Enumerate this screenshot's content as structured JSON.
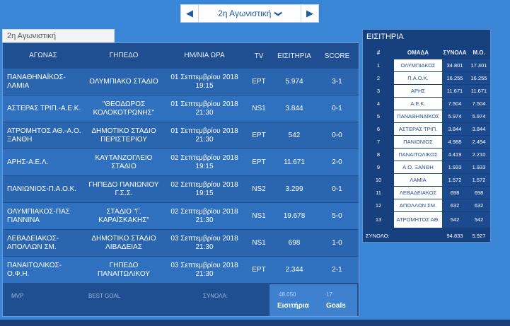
{
  "round_nav": {
    "prev_icon": "◀",
    "label": "2η Αγωνιστική",
    "chevron": "❯",
    "next_icon": "▶"
  },
  "tab_label": "2η Αγωνιστική",
  "matches": {
    "headers": {
      "match": "ΑΓΩΝΑΣ",
      "venue": "ΓΗΠΕΔΟ",
      "date": "ΗΜ/ΝΙΑ ΩΡΑ",
      "tv": "TV",
      "attendance": "ΕΙΣΙΤΗΡΙΑ",
      "score": "SCORE"
    },
    "rows": [
      {
        "match": "ΠΑΝΑΘΗΝΑΪΚΟΣ-ΛΑΜΙΑ",
        "venue": "ΟΛΥΜΠΙΑΚΟ ΣΤΑΔΙΟ",
        "date": "01 Σεπτεμβρίου 2018 19:15",
        "tv": "ΕΡΤ",
        "attendance": "5.974",
        "score": "3-1"
      },
      {
        "match": "ΑΣΤΕΡΑΣ ΤΡΙΠ.-Α.Ε.Κ.",
        "venue": "\"ΘΕΟΔΩΡΟΣ ΚΟΛΟΚΟΤΡΩΝΗΣ\"",
        "date": "01 Σεπτεμβρίου 2018 21:30",
        "tv": "NS1",
        "attendance": "3.844",
        "score": "0-1"
      },
      {
        "match": "ΑΤΡΟΜΗΤΟΣ ΑΘ.-Α.Ο. ΞΑΝΘΗ",
        "venue": "ΔΗΜΟΤΙΚΟ ΣΤΑΔΙΟ ΠΕΡΙΣΤΕΡΙΟΥ",
        "date": "01 Σεπτεμβρίου 2018 21:30",
        "tv": "ΕΡΤ",
        "attendance": "542",
        "score": "0-0"
      },
      {
        "match": "ΑΡΗΣ-Α.Ε.Λ.",
        "venue": "ΚΑΥΤΑΝΖΟΓΛΕΙΟ ΣΤΑΔΙΟ",
        "date": "02 Σεπτεμβρίου 2018 19:15",
        "tv": "ΕΡΤ",
        "attendance": "11.671",
        "score": "2-0"
      },
      {
        "match": "ΠΑΝΙΩΝΙΟΣ-Π.Α.Ο.Κ.",
        "venue": "ΓΗΠΕΔΟ ΠΑΝΙΩΝΙΟΥ Γ.Σ.Σ.",
        "date": "02 Σεπτεμβρίου 2018 19:15",
        "tv": "NS2",
        "attendance": "3.299",
        "score": "0-1"
      },
      {
        "match": "ΟΛΥΜΠΙΑΚΟΣ-ΠΑΣ ΓΙΑΝΝΙΝΑ",
        "venue": "ΣΤΑΔΙΟ \"Γ. ΚΑΡΑΪΣΚΑΚΗΣ\"",
        "date": "02 Σεπτεμβρίου 2018 21:30",
        "tv": "NS1",
        "attendance": "19.678",
        "score": "5-0"
      },
      {
        "match": "ΛΕΒΑΔΕΙΑΚΟΣ-ΑΠΟΛΛΩΝ ΣΜ.",
        "venue": "ΔΗΜΟΤΙΚΟ ΣΤΑΔΙΟ ΛΙΒΑΔΕΙΑΣ",
        "date": "03 Σεπτεμβρίου 2018 21:30",
        "tv": "NS1",
        "attendance": "698",
        "score": "1-0"
      },
      {
        "match": "ΠΑΝΑΙΤΩΛΙΚΟΣ-Ο.Φ.Η.",
        "venue": "ΓΗΠΕΔΟ ΠΑΝΑΙΤΩΛΙΚΟΥ",
        "date": "03 Σεπτεμβρίου 2018 21:30",
        "tv": "ΕΡΤ",
        "attendance": "2.344",
        "score": "2-1"
      }
    ],
    "footer": {
      "mvp": "MVP",
      "best_goal": "BEST GOAL",
      "totals_label": "ΣΥΝΟΛΑ:",
      "tickets_total": "48.050",
      "tickets_label": "Εισιτήρια",
      "goals_total": "17",
      "goals_label": "Goals"
    }
  },
  "tickets": {
    "title": "ΕΙΣΙΤΗΡΙΑ",
    "headers": {
      "no": "#",
      "team": "ΟΜΑΔΑ",
      "total": "ΣΥΝΟΛΑ",
      "avg": "Μ.Ο."
    },
    "rows": [
      {
        "no": "1",
        "team": "ΟΛΥΜΠΙΑΚΟΣ",
        "total": "34.801",
        "avg": "17.401"
      },
      {
        "no": "2",
        "team": "Π.Α.Ο.Κ.",
        "total": "16.255",
        "avg": "16.255"
      },
      {
        "no": "3",
        "team": "ΑΡΗΣ",
        "total": "11.671",
        "avg": "11.671"
      },
      {
        "no": "4",
        "team": "Α.Ε.Κ.",
        "total": "7.504",
        "avg": "7.504"
      },
      {
        "no": "5",
        "team": "ΠΑΝΑΘΗΝΑΪΚΟΣ",
        "total": "5.974",
        "avg": "5.974"
      },
      {
        "no": "6",
        "team": "ΑΣΤΕΡΑΣ ΤΡΙΠ.",
        "total": "3.844",
        "avg": "3.844"
      },
      {
        "no": "7",
        "team": "ΠΑΝΙΩΝΙΟΣ",
        "total": "4.988",
        "avg": "2.494"
      },
      {
        "no": "8",
        "team": "ΠΑΝΑΙΤΩΛΙΚΟΣ",
        "total": "4.419",
        "avg": "2.210"
      },
      {
        "no": "9",
        "team": "Α.Ο. ΞΑΝΘΗ",
        "total": "1.933",
        "avg": "1.933"
      },
      {
        "no": "10",
        "team": "ΛΑΜΙΑ",
        "total": "1.572",
        "avg": "1.572"
      },
      {
        "no": "11",
        "team": "ΛΕΒΑΔΕΙΑΚΟΣ",
        "total": "698",
        "avg": "698"
      },
      {
        "no": "12",
        "team": "ΑΠΟΛΛΩΝ ΣΜ.",
        "total": "632",
        "avg": "632"
      },
      {
        "no": "13",
        "team": "ΑΤΡΟΜΗΤΟΣ ΑΘ.",
        "total": "542",
        "avg": "542"
      }
    ],
    "footer": {
      "label": "ΣΥΝΟΛΟ:",
      "total": "94.833",
      "avg": "5.927"
    }
  }
}
